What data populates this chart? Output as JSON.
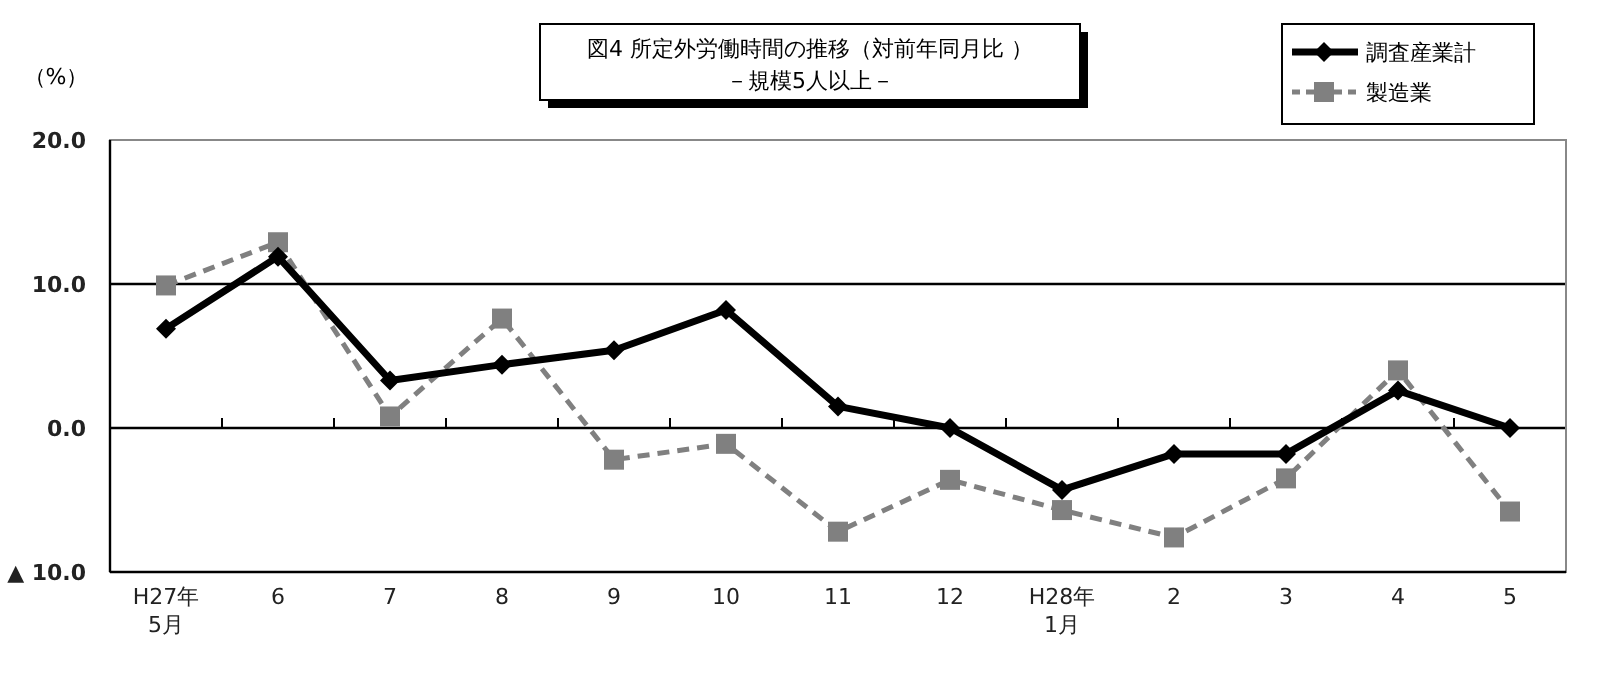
{
  "chart_data": {
    "type": "line",
    "title": "図4  所定外労働時間の推移（対前年同月比 ）",
    "subtitle": "－規模5人以上－",
    "ylabel": "（%）",
    "categories": [
      "H27年\n5月",
      "6",
      "7",
      "8",
      "9",
      "10",
      "11",
      "12",
      "H28年\n1月",
      "2",
      "3",
      "4",
      "5"
    ],
    "series": [
      {
        "name": "調査産業計",
        "color": "#000000",
        "marker": "diamond",
        "line_style": "solid",
        "values": [
          6.9,
          11.9,
          3.3,
          4.4,
          5.4,
          8.2,
          1.5,
          0.0,
          -4.3,
          -1.8,
          -1.8,
          2.6,
          0.0
        ]
      },
      {
        "name": "製造業",
        "color": "#808080",
        "marker": "square",
        "line_style": "dashed",
        "values": [
          9.9,
          12.9,
          0.8,
          7.6,
          -2.2,
          -1.1,
          -7.2,
          -3.6,
          -5.7,
          -7.6,
          -3.5,
          4.0,
          -5.8
        ]
      }
    ],
    "ylim": [
      -10,
      20
    ],
    "yticks": [
      {
        "value": -10,
        "label": "▲ 10.0"
      },
      {
        "value": 0,
        "label": "0.0"
      },
      {
        "value": 10,
        "label": "10.0"
      },
      {
        "value": 20,
        "label": "20.0"
      }
    ],
    "grid": "y",
    "legend": "top right"
  }
}
